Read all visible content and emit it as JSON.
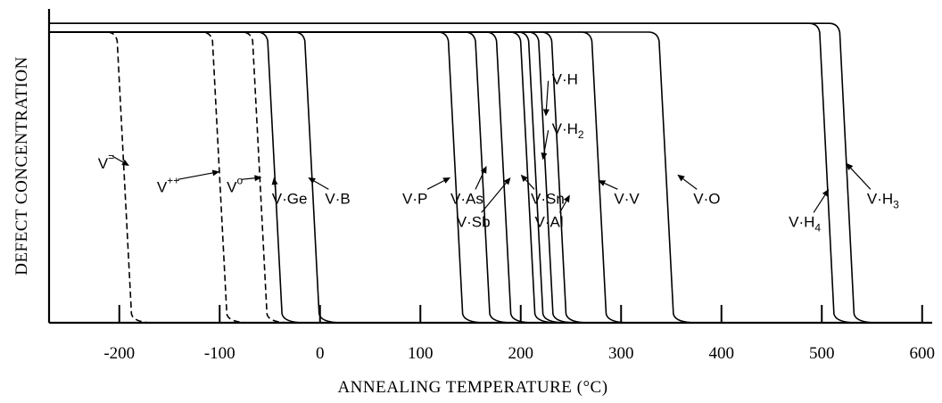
{
  "chart_data": {
    "type": "line",
    "xlabel": "ANNEALING TEMPERATURE  (°C)",
    "ylabel": "DEFECT CONCENTRATION",
    "xlim": [
      -270,
      610
    ],
    "ylim": [
      0,
      1
    ],
    "x_ticks": [
      -200,
      -100,
      0,
      100,
      200,
      300,
      400,
      500,
      600
    ],
    "x_tick_labels": [
      "-200",
      "-100",
      "0",
      "100",
      "200",
      "300",
      "400",
      "500",
      "600"
    ],
    "grid": false,
    "series": [
      {
        "name": "V=",
        "label": [
          "V",
          "="
        ],
        "style": "dashed",
        "anneal_temp": -195,
        "level": 1.0,
        "label_pos": [
          -205,
          0.53
        ],
        "label_anchor": "end",
        "arrow_to": [
          -190,
          0.54
        ]
      },
      {
        "name": "V++",
        "label": [
          "V",
          "++"
        ],
        "style": "dashed",
        "anneal_temp": -100,
        "level": 1.0,
        "label_pos": [
          -140,
          0.45
        ],
        "label_anchor": "end",
        "arrow_to": [
          -100,
          0.52
        ]
      },
      {
        "name": "V0",
        "label": [
          "V",
          "o"
        ],
        "style": "dashed",
        "anneal_temp": -60,
        "level": 1.0,
        "label_pos": [
          -77,
          0.45
        ],
        "label_anchor": "end",
        "arrow_to": [
          -58,
          0.5
        ]
      },
      {
        "name": "V·Ge",
        "label": [
          "V·Ge",
          ""
        ],
        "style": "solid",
        "anneal_temp": -45,
        "level": 1.0,
        "label_pos": [
          -48,
          0.41
        ],
        "label_anchor": "start",
        "arrow_to": [
          -46,
          0.5
        ]
      },
      {
        "name": "V·B",
        "label": [
          "V·B",
          ""
        ],
        "style": "solid",
        "anneal_temp": -8,
        "level": 1.0,
        "label_pos": [
          5,
          0.41
        ],
        "label_anchor": "start",
        "arrow_to": [
          -12,
          0.5
        ]
      },
      {
        "name": "V·P",
        "label": [
          "V·P",
          ""
        ],
        "style": "solid",
        "anneal_temp": 135,
        "level": 1.0,
        "label_pos": [
          82,
          0.41
        ],
        "label_anchor": "start",
        "arrow_to": [
          130,
          0.5
        ]
      },
      {
        "name": "V·As",
        "label": [
          "V·As",
          ""
        ],
        "style": "solid",
        "anneal_temp": 162,
        "level": 1.0,
        "label_pos": [
          130,
          0.41
        ],
        "label_anchor": "start",
        "arrow_to": [
          166,
          0.54
        ]
      },
      {
        "name": "V·Sb",
        "label": [
          "V·Sb",
          ""
        ],
        "style": "solid",
        "anneal_temp": 183,
        "level": 1.0,
        "label_pos": [
          136,
          0.33
        ],
        "label_anchor": "start",
        "arrow_to": [
          190,
          0.5
        ]
      },
      {
        "name": "V·Sn",
        "label": [
          "V·Sn",
          ""
        ],
        "style": "solid",
        "anneal_temp": 207,
        "level": 1.0,
        "label_pos": [
          210,
          0.41
        ],
        "label_anchor": "start",
        "arrow_to": [
          200,
          0.51
        ]
      },
      {
        "name": "V·H",
        "label": [
          "V·H",
          ""
        ],
        "style": "solid",
        "anneal_temp": 215,
        "level": 1.0,
        "label_pos": [
          231,
          0.82
        ],
        "label_anchor": "start",
        "arrow_to": [
          225,
          0.71
        ]
      },
      {
        "name": "V·H2",
        "label": [
          "V·H",
          "2"
        ],
        "style": "solid",
        "anneal_temp": 225,
        "level": 1.0,
        "label_pos": [
          231,
          0.65
        ],
        "label_anchor": "start",
        "arrow_to": [
          222,
          0.56
        ]
      },
      {
        "name": "V·Al",
        "label": [
          "V·Al",
          ""
        ],
        "style": "solid",
        "anneal_temp": 238,
        "level": 1.0,
        "label_pos": [
          214,
          0.33
        ],
        "label_anchor": "start",
        "arrow_to": [
          249,
          0.44
        ]
      },
      {
        "name": "V·V",
        "label": [
          "V·V",
          ""
        ],
        "style": "solid",
        "anneal_temp": 278,
        "level": 1.0,
        "label_pos": [
          293,
          0.41
        ],
        "label_anchor": "start",
        "arrow_to": [
          277,
          0.49
        ]
      },
      {
        "name": "V·O",
        "label": [
          "V·O",
          ""
        ],
        "style": "solid",
        "anneal_temp": 345,
        "level": 1.0,
        "label_pos": [
          372,
          0.41
        ],
        "label_anchor": "start",
        "arrow_to": [
          356,
          0.51
        ]
      },
      {
        "name": "V·H4",
        "label": [
          "V·H",
          "4"
        ],
        "style": "solid",
        "anneal_temp": 505,
        "level": 1.03,
        "label_pos": [
          467,
          0.33
        ],
        "label_anchor": "start",
        "arrow_to": [
          507,
          0.46
        ]
      },
      {
        "name": "V·H3",
        "label": [
          "V·H",
          "3"
        ],
        "style": "solid",
        "anneal_temp": 525,
        "level": 1.03,
        "label_pos": [
          545,
          0.41
        ],
        "label_anchor": "start",
        "arrow_to": [
          524,
          0.55
        ]
      }
    ]
  }
}
